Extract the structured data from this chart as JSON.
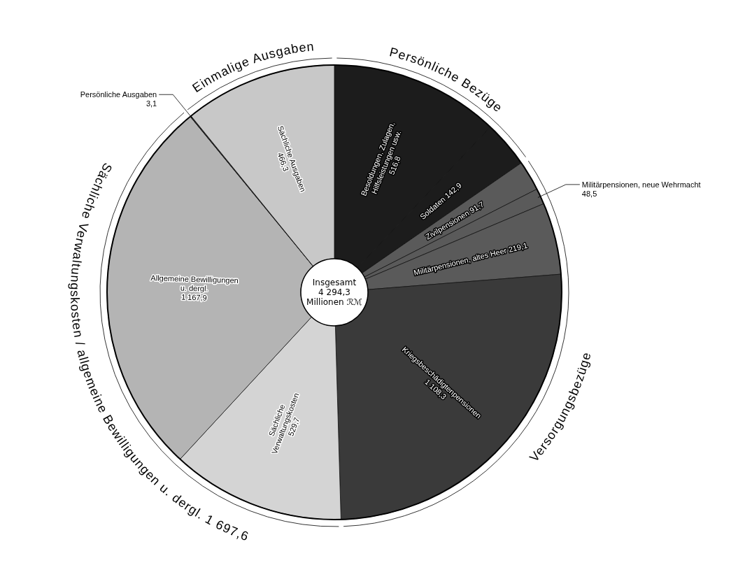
{
  "chart_data": {
    "type": "donut",
    "categories": [
      "Besoldungen, Zulagen, Hilfsleistungen usw.",
      "Soldaten",
      "Zivilpensionen",
      "Militärpensionen, neue Wehrmacht",
      "Militärpensionen, altes Heer",
      "Kriegsbeschädigtenpensionen",
      "Sächliche Verwaltungskosten",
      "Allgemeine Bewilligungen u. dergl.",
      "Persönliche Ausgaben",
      "Sächliche Ausgaben"
    ],
    "values": [
      516.8,
      142.9,
      91.7,
      48.5,
      219.1,
      1108.3,
      529.7,
      1167.9,
      3.1,
      466.3
    ],
    "value_labels": [
      "516,8",
      "142,9",
      "91,7",
      "48,5",
      "219,1",
      "1 108,3",
      "529,7",
      "1 167,9",
      "3,1",
      "466,3"
    ],
    "colors": [
      "#1c1c1c",
      "#1c1c1c",
      "#5a5a5a",
      "#5a5a5a",
      "#5a5a5a",
      "#3a3a3a",
      "#d4d4d4",
      "#b4b4b4",
      "#2a2a2a",
      "#c8c8c8"
    ],
    "annotations": [
      "Insgesamt\n4 294,3\nMillionen ℛℳ",
      "Persönliche Bezüge",
      "Versorgungsbezüge",
      "Sächliche Verwaltungskosten / allgemeine Bewilligungen u. dergl. 1 697,6",
      "Einmalige Ausgaben"
    ]
  }
}
